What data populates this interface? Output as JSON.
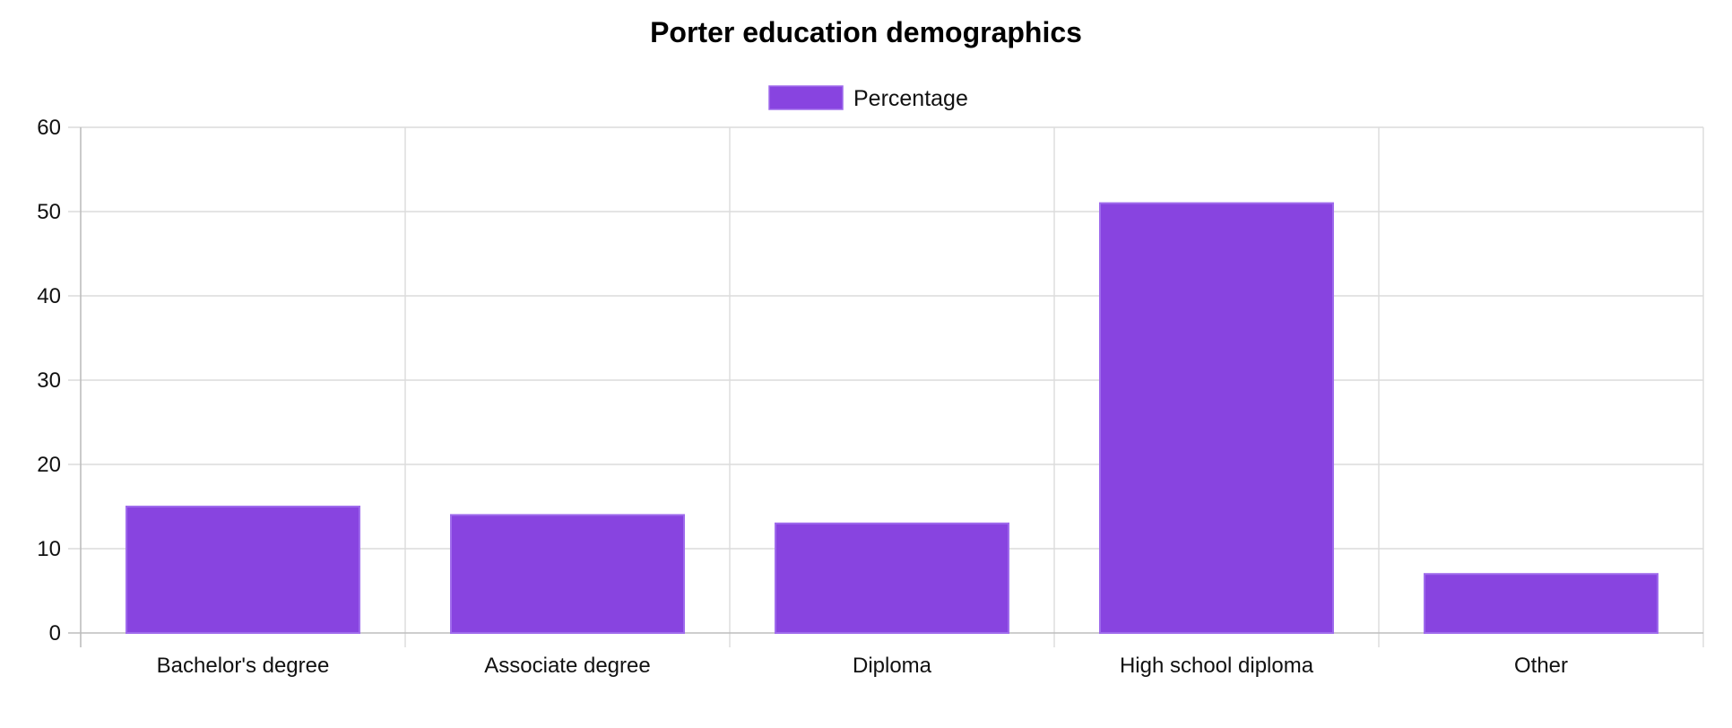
{
  "chart_data": {
    "type": "bar",
    "title": "Porter education demographics",
    "xlabel": "",
    "ylabel": "",
    "categories": [
      "Bachelor's degree",
      "Associate degree",
      "Diploma",
      "High school diploma",
      "Other"
    ],
    "series": [
      {
        "name": "Percentage",
        "values": [
          15,
          14,
          13,
          51,
          7
        ],
        "color": "#8844e0",
        "border_color": "#9f6bec"
      }
    ],
    "ylim": [
      0,
      60
    ],
    "yticks": [
      "0",
      "10",
      "20",
      "30",
      "40",
      "50",
      "60"
    ],
    "grid": true,
    "legend_position": "top-center"
  }
}
